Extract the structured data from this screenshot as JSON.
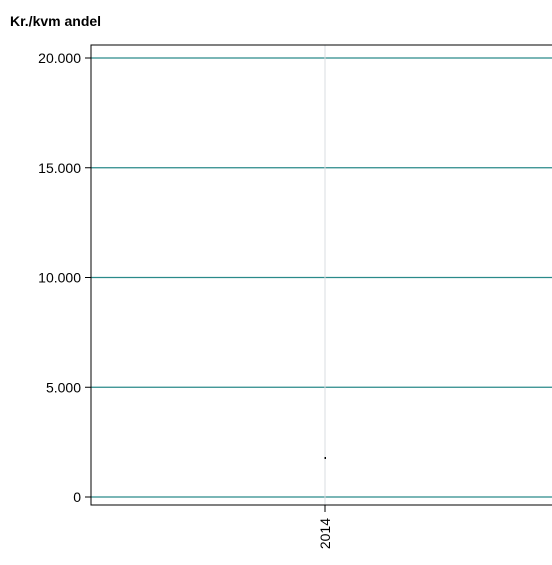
{
  "chart_data": {
    "type": "line",
    "title": "Kr./kvm andel",
    "xlabel": "",
    "ylabel": "",
    "categories": [
      "2014"
    ],
    "x_tick_labels": [
      "2014"
    ],
    "y_ticks": [
      {
        "value": 0,
        "label": "0"
      },
      {
        "value": 5000,
        "label": "5.000"
      },
      {
        "value": 10000,
        "label": "10.000"
      },
      {
        "value": 15000,
        "label": "15.000"
      },
      {
        "value": 20000,
        "label": "20.000"
      }
    ],
    "ylim": [
      0,
      20000
    ],
    "series": [
      {
        "values": [
          1800
        ]
      }
    ],
    "grid": true,
    "colors": {
      "gridline": "#2a8a8a",
      "frame": "#000000",
      "vertical_guide": "#d8dde0",
      "point": "#000000"
    }
  }
}
